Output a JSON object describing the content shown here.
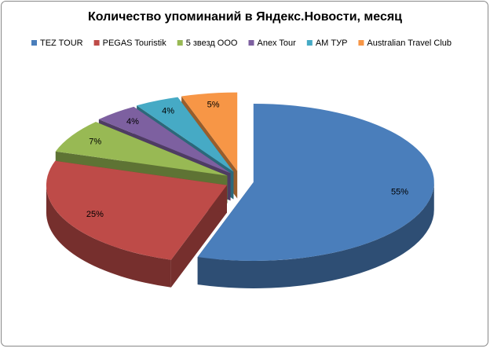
{
  "chart_data": {
    "type": "pie3d",
    "title": "Количество упоминаний в Яндекс.Новости, месяц",
    "categories": [
      "TEZ TOUR",
      "PEGAS Touristik",
      "5 звезд ООО",
      "Anex Tour",
      "АМ ТУР",
      "Australian Travel Club"
    ],
    "values": [
      55,
      25,
      7,
      4,
      4,
      5
    ],
    "value_labels": [
      "55%",
      "25%",
      "7%",
      "4%",
      "4%",
      "5%"
    ],
    "colors": [
      "#4a7ebb",
      "#be4b48",
      "#98b954",
      "#7d60a0",
      "#46aac5",
      "#f79646"
    ],
    "legend": "top"
  }
}
